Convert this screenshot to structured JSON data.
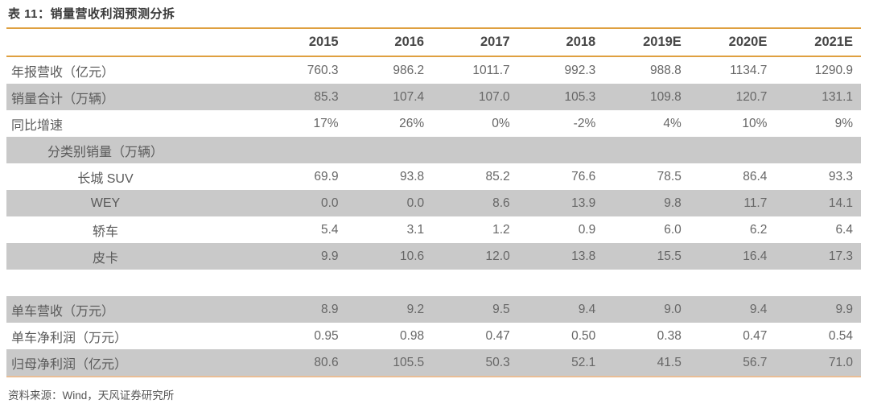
{
  "title": "表 11：销量营收利润预测分拆",
  "colors": {
    "accent_line": "#dfa040",
    "accent_line_bottom": "#e8bd96",
    "row_shade": "#c9c9c9"
  },
  "table": {
    "columns": [
      "2015",
      "2016",
      "2017",
      "2018",
      "2019E",
      "2020E",
      "2021E"
    ],
    "rows": [
      {
        "label": "年报营收（亿元）",
        "center": false,
        "shade": false,
        "spacer": false,
        "values": [
          "760.3",
          "986.2",
          "1011.7",
          "992.3",
          "988.8",
          "1134.7",
          "1290.9"
        ]
      },
      {
        "label": "销量合计（万辆）",
        "center": false,
        "shade": true,
        "spacer": false,
        "values": [
          "85.3",
          "107.4",
          "107.0",
          "105.3",
          "109.8",
          "120.7",
          "131.1"
        ]
      },
      {
        "label": "同比增速",
        "center": false,
        "shade": false,
        "spacer": false,
        "values": [
          "17%",
          "26%",
          "0%",
          "-2%",
          "4%",
          "10%",
          "9%"
        ]
      },
      {
        "label": "分类别销量（万辆）",
        "center": true,
        "shade": true,
        "spacer": false,
        "values": [
          "",
          "",
          "",
          "",
          "",
          "",
          ""
        ]
      },
      {
        "label": "长城 SUV",
        "center": true,
        "shade": false,
        "spacer": false,
        "values": [
          "69.9",
          "93.8",
          "85.2",
          "76.6",
          "78.5",
          "86.4",
          "93.3"
        ]
      },
      {
        "label": "WEY",
        "center": true,
        "shade": true,
        "spacer": false,
        "values": [
          "0.0",
          "0.0",
          "8.6",
          "13.9",
          "9.8",
          "11.7",
          "14.1"
        ]
      },
      {
        "label": "轿车",
        "center": true,
        "shade": false,
        "spacer": false,
        "values": [
          "5.4",
          "3.1",
          "1.2",
          "0.9",
          "6.0",
          "6.2",
          "6.4"
        ]
      },
      {
        "label": "皮卡",
        "center": true,
        "shade": true,
        "spacer": false,
        "values": [
          "9.9",
          "10.6",
          "12.0",
          "13.8",
          "15.5",
          "16.4",
          "17.3"
        ]
      },
      {
        "label": "",
        "center": false,
        "shade": false,
        "spacer": true,
        "values": [
          "",
          "",
          "",
          "",
          "",
          "",
          ""
        ]
      },
      {
        "label": "单车营收（万元）",
        "center": false,
        "shade": true,
        "spacer": false,
        "values": [
          "8.9",
          "9.2",
          "9.5",
          "9.4",
          "9.0",
          "9.4",
          "9.9"
        ]
      },
      {
        "label": "单车净利润（万元）",
        "center": false,
        "shade": false,
        "spacer": false,
        "values": [
          "0.95",
          "0.98",
          "0.47",
          "0.50",
          "0.38",
          "0.47",
          "0.54"
        ]
      },
      {
        "label": "归母净利润（亿元）",
        "center": false,
        "shade": true,
        "spacer": false,
        "values": [
          "80.6",
          "105.5",
          "50.3",
          "52.1",
          "41.5",
          "56.7",
          "71.0"
        ]
      }
    ]
  },
  "footer": {
    "source_label": "资料来源：Wind，天风证券研究所"
  }
}
